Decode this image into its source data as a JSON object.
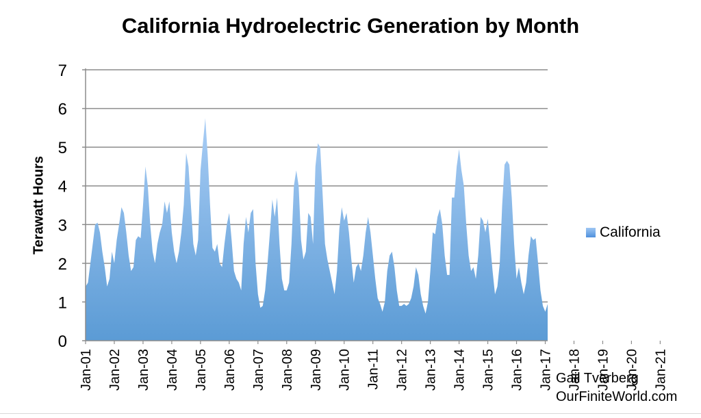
{
  "chart_data": {
    "type": "area",
    "title": "California Hydroelectric Generation by Month",
    "xlabel": "",
    "ylabel": "Terawatt Hours",
    "ylim": [
      0,
      7
    ],
    "yticks": [
      "0",
      "1",
      "2",
      "3",
      "4",
      "5",
      "6",
      "7"
    ],
    "grid": true,
    "legend_position": "right",
    "x_start": "Jan-01",
    "x_end": "Jan-21",
    "x_ticks": [
      "Jan-01",
      "Jan-02",
      "Jan-03",
      "Jan-04",
      "Jan-05",
      "Jan-06",
      "Jan-07",
      "Jan-08",
      "Jan-09",
      "Jan-10",
      "Jan-11",
      "Jan-12",
      "Jan-13",
      "Jan-14",
      "Jan-15",
      "Jan-16",
      "Jan-17",
      "Jan-18",
      "Jan-19",
      "Jan-20",
      "Jan-21"
    ],
    "series": [
      {
        "name": "California",
        "color": "#5b9bd5",
        "values": [
          1.4,
          1.5,
          2.0,
          2.5,
          3.0,
          3.05,
          2.8,
          2.3,
          1.9,
          1.4,
          1.6,
          2.3,
          2.0,
          2.6,
          3.0,
          3.45,
          3.3,
          2.8,
          2.2,
          1.8,
          1.9,
          2.6,
          2.7,
          2.65,
          3.5,
          4.5,
          4.0,
          3.0,
          2.3,
          2.0,
          2.5,
          2.8,
          3.0,
          3.6,
          3.3,
          3.6,
          2.8,
          2.3,
          2.0,
          2.3,
          2.8,
          3.5,
          4.85,
          4.5,
          3.5,
          2.5,
          2.2,
          2.6,
          4.4,
          5.1,
          5.75,
          4.8,
          3.5,
          2.4,
          2.3,
          2.5,
          2.0,
          1.9,
          2.5,
          3.0,
          3.3,
          2.6,
          1.8,
          1.6,
          1.5,
          1.3,
          2.5,
          3.2,
          2.8,
          3.3,
          3.4,
          2.0,
          1.2,
          0.85,
          0.9,
          1.3,
          2.0,
          2.8,
          3.65,
          3.2,
          3.7,
          2.5,
          1.6,
          1.3,
          1.3,
          1.5,
          2.5,
          4.0,
          4.4,
          4.0,
          2.6,
          2.1,
          2.3,
          3.3,
          3.2,
          2.5,
          4.5,
          5.1,
          5.0,
          3.8,
          2.5,
          2.1,
          1.8,
          1.5,
          1.2,
          1.8,
          2.9,
          3.45,
          3.1,
          3.3,
          2.8,
          2.1,
          1.5,
          1.9,
          2.0,
          1.8,
          2.2,
          2.8,
          3.2,
          2.8,
          2.2,
          1.6,
          1.1,
          0.95,
          0.75,
          1.0,
          1.8,
          2.2,
          2.3,
          1.9,
          1.3,
          0.9,
          0.9,
          0.95,
          0.9,
          0.95,
          1.1,
          1.4,
          1.9,
          1.7,
          1.2,
          0.9,
          0.7,
          1.0,
          1.8,
          2.8,
          2.75,
          3.2,
          3.4,
          3.0,
          2.2,
          1.7,
          1.7,
          3.7,
          3.7,
          4.5,
          4.95,
          4.4,
          4.0,
          3.0,
          2.2,
          1.8,
          1.9,
          1.6,
          2.2,
          3.2,
          3.1,
          2.8,
          3.15,
          2.5,
          1.8,
          1.2,
          1.4,
          2.0,
          3.5,
          4.55,
          4.65,
          4.55,
          3.7,
          2.5,
          1.6,
          1.9,
          1.5,
          1.2,
          1.5,
          2.2,
          2.7,
          2.6,
          2.65,
          2.0,
          1.3,
          0.9,
          0.75,
          0.95
        ]
      }
    ]
  },
  "credit": {
    "line1": "Gail Tverberg",
    "line2": "OurFiniteWorld.com"
  }
}
